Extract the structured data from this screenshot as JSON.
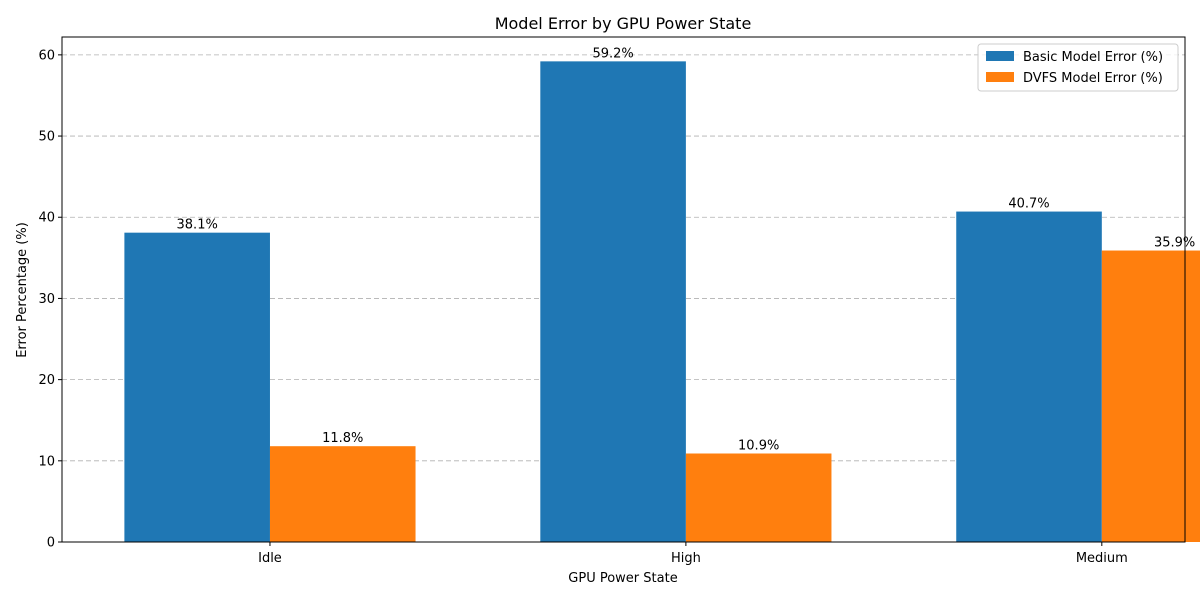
{
  "chart_data": {
    "type": "bar",
    "title": "Model Error by GPU Power State",
    "xlabel": "GPU Power State",
    "ylabel": "Error Percentage (%)",
    "categories": [
      "Idle",
      "High",
      "Medium"
    ],
    "series": [
      {
        "name": "Basic Model Error (%)",
        "values": [
          38.1,
          59.2,
          40.7
        ],
        "color": "#1f77b4"
      },
      {
        "name": "DVFS Model Error (%)",
        "values": [
          11.8,
          10.9,
          35.9
        ],
        "color": "#ff7f0e"
      }
    ],
    "data_labels": [
      [
        "38.1%",
        "59.2%",
        "40.7%"
      ],
      [
        "11.8%",
        "10.9%",
        "35.9%"
      ]
    ],
    "ylim": [
      0,
      62.2
    ],
    "yticks": [
      0,
      10,
      20,
      30,
      40,
      50,
      60
    ],
    "grid": "y-dashed",
    "legend_position": "top-right"
  }
}
